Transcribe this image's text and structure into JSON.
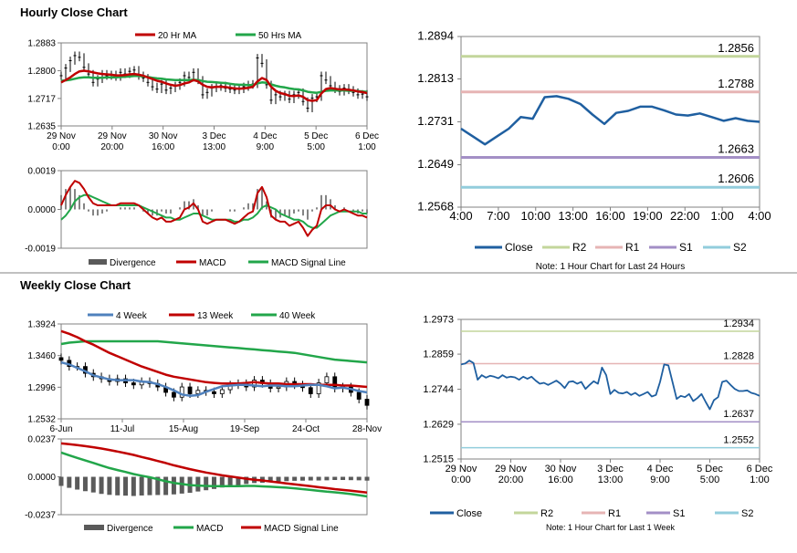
{
  "sections": {
    "hourly_title": "Hourly Close Chart",
    "weekly_title": "Weekly Close Chart"
  },
  "colors": {
    "close": "#1f5fa0",
    "ma20": "#c00000",
    "ma50": "#22a64a",
    "r2": "#c3d69b",
    "r1": "#e6b4b4",
    "s1": "#a38fc6",
    "s2": "#92cddc",
    "divergence": "#5a5a5a",
    "ma4": "#4f81bd",
    "ma13": "#c00000",
    "ma40": "#22a64a"
  },
  "chart_data": [
    {
      "id": "hourly-price",
      "type": "line",
      "legend": [
        "20 Hr MA",
        "50 Hrs MA"
      ],
      "x_ticks": [
        "29 Nov\n0:00",
        "29 Nov\n20:00",
        "30 Nov\n16:00",
        "3 Dec\n13:00",
        "4 Dec\n9:00",
        "5 Dec\n5:00",
        "6 Dec\n1:00"
      ],
      "y_ticks": [
        "1.2883",
        "1.2800",
        "1.2717",
        "1.2635"
      ],
      "ylim": [
        1.2635,
        1.2883
      ],
      "ohlc_hint": "candles",
      "close": [
        1.2785,
        1.2808,
        1.283,
        1.2845,
        1.284,
        1.281,
        1.279,
        1.2765,
        1.2775,
        1.279,
        1.2785,
        1.2788,
        1.2782,
        1.2795,
        1.279,
        1.2798,
        1.2802,
        1.2785,
        1.2778,
        1.2765,
        1.2752,
        1.2745,
        1.276,
        1.2742,
        1.2748,
        1.2755,
        1.2765,
        1.2785,
        1.278,
        1.2795,
        1.2772,
        1.2728,
        1.2735,
        1.2748,
        1.2752,
        1.2755,
        1.2748,
        1.2745,
        1.2742,
        1.2745,
        1.2752,
        1.2758,
        1.276,
        1.2838,
        1.2822,
        1.2758,
        1.2712,
        1.2728,
        1.2722,
        1.2728,
        1.2715,
        1.2728,
        1.2735,
        1.2708,
        1.2688,
        1.2718,
        1.2722,
        1.2785,
        1.2772,
        1.2755,
        1.2745,
        1.2738,
        1.2748,
        1.2742,
        1.2735,
        1.2728,
        1.273,
        1.2722
      ],
      "ma20": [
        1.2765,
        1.2772,
        1.278,
        1.279,
        1.2798,
        1.28,
        1.2798,
        1.2795,
        1.2792,
        1.279,
        1.2789,
        1.2788,
        1.2786,
        1.2786,
        1.2787,
        1.2789,
        1.279,
        1.2788,
        1.2785,
        1.278,
        1.2775,
        1.277,
        1.2767,
        1.2762,
        1.2758,
        1.2755,
        1.2757,
        1.2762,
        1.2765,
        1.2772,
        1.2768,
        1.2758,
        1.2752,
        1.275,
        1.2752,
        1.2752,
        1.2751,
        1.2749,
        1.2747,
        1.2746,
        1.2747,
        1.2749,
        1.2752,
        1.2768,
        1.2778,
        1.2772,
        1.2752,
        1.274,
        1.2733,
        1.273,
        1.2725,
        1.2724,
        1.2726,
        1.2722,
        1.2712,
        1.271,
        1.2712,
        1.2732,
        1.2745,
        1.2748,
        1.2746,
        1.2744,
        1.2744,
        1.2743,
        1.2741,
        1.2738,
        1.2736,
        1.2733
      ],
      "ma50": [
        1.277,
        1.2771,
        1.2773,
        1.2776,
        1.2779,
        1.278,
        1.278,
        1.2779,
        1.2779,
        1.2779,
        1.278,
        1.278,
        1.278,
        1.2781,
        1.2782,
        1.2783,
        1.2784,
        1.2784,
        1.2783,
        1.2781,
        1.2779,
        1.2777,
        1.2776,
        1.2774,
        1.2773,
        1.2772,
        1.2772,
        1.2772,
        1.2772,
        1.2773,
        1.2772,
        1.2769,
        1.2767,
        1.2766,
        1.2765,
        1.2764,
        1.2763,
        1.2761,
        1.2759,
        1.2758,
        1.2758,
        1.2757,
        1.2757,
        1.2762,
        1.2765,
        1.2764,
        1.2759,
        1.2755,
        1.2752,
        1.275,
        1.2747,
        1.2745,
        1.2744,
        1.2741,
        1.2737,
        1.2735,
        1.2734,
        1.2737,
        1.274,
        1.2741,
        1.2741,
        1.2741,
        1.2741,
        1.274,
        1.274,
        1.2739,
        1.2738,
        1.2737
      ]
    },
    {
      "id": "hourly-macd",
      "type": "line",
      "legend": [
        "Divergence",
        "MACD",
        "MACD Signal Line"
      ],
      "y_ticks": [
        "0.0019",
        "0.0000",
        "-0.0019"
      ],
      "ylim": [
        -0.0019,
        0.0019
      ],
      "macd": [
        0.0002,
        0.0007,
        0.0011,
        0.0014,
        0.0013,
        0.001,
        0.0006,
        0.0003,
        0.0002,
        0.0002,
        0.0002,
        0.0002,
        0.0002,
        0.0003,
        0.0003,
        0.0003,
        0.0003,
        0.0002,
        0.0,
        -0.0002,
        -0.0004,
        -0.0005,
        -0.0004,
        -0.0006,
        -0.0006,
        -0.0005,
        -0.0004,
        0.0,
        0.0001,
        0.0003,
        0.0,
        -0.0006,
        -0.0007,
        -0.0006,
        -0.0005,
        -0.0005,
        -0.0005,
        -0.0006,
        -0.0007,
        -0.0006,
        -0.0004,
        -0.0002,
        -0.0001,
        0.0008,
        0.0011,
        0.0006,
        -0.0003,
        -0.0005,
        -0.0006,
        -0.0006,
        -0.0008,
        -0.0007,
        -0.0006,
        -0.0009,
        -0.0013,
        -0.001,
        -0.0008,
        0.0,
        0.0002,
        0.0002,
        0.0,
        -0.0001,
        0.0,
        -0.0001,
        -0.0002,
        -0.0003,
        -0.0003,
        -0.0004
      ],
      "signal": [
        -0.0005,
        -0.0003,
        0.0,
        0.0004,
        0.0006,
        0.0007,
        0.0007,
        0.0006,
        0.0005,
        0.0004,
        0.0003,
        0.0002,
        0.0002,
        0.0002,
        0.0002,
        0.0002,
        0.0002,
        0.0002,
        0.0001,
        0.0,
        -0.0001,
        -0.0002,
        -0.0003,
        -0.0004,
        -0.0004,
        -0.0005,
        -0.0005,
        -0.0004,
        -0.0003,
        -0.0002,
        -0.0002,
        -0.0003,
        -0.0004,
        -0.0005,
        -0.0005,
        -0.0005,
        -0.0005,
        -0.0005,
        -0.0006,
        -0.0006,
        -0.0005,
        -0.0005,
        -0.0004,
        -0.0002,
        0.0001,
        0.0002,
        0.0001,
        0.0,
        -0.0002,
        -0.0003,
        -0.0004,
        -0.0005,
        -0.0005,
        -0.0006,
        -0.0008,
        -0.0009,
        -0.0009,
        -0.0007,
        -0.0005,
        -0.0003,
        -0.0002,
        -0.0001,
        -0.0001,
        -0.0001,
        -0.0001,
        -0.0001,
        -0.0002,
        -0.0002
      ]
    },
    {
      "id": "hourly-24h",
      "type": "line",
      "x_ticks": [
        "4:00",
        "7:00",
        "10:00",
        "13:00",
        "16:00",
        "19:00",
        "22:00",
        "1:00",
        "4:00"
      ],
      "y_ticks": [
        "1.2894",
        "1.2813",
        "1.2731",
        "1.2649",
        "1.2568"
      ],
      "ylim": [
        1.2568,
        1.2894
      ],
      "levels": {
        "R2": 1.2856,
        "R1": 1.2788,
        "S1": 1.2663,
        "S2": 1.2606
      },
      "level_labels": [
        "1.2856",
        "1.2788",
        "1.2663",
        "1.2606"
      ],
      "legend": [
        "Close",
        "R2",
        "R1",
        "S1",
        "S2"
      ],
      "note": "Note: 1 Hour Chart for Last 24 Hours",
      "close": [
        1.2718,
        1.2703,
        1.2688,
        1.2703,
        1.2718,
        1.274,
        1.2737,
        1.2778,
        1.278,
        1.2775,
        1.2765,
        1.2745,
        1.2727,
        1.2748,
        1.2752,
        1.276,
        1.276,
        1.2753,
        1.2745,
        1.2743,
        1.2747,
        1.274,
        1.2733,
        1.2738,
        1.2733,
        1.2731
      ]
    },
    {
      "id": "weekly-price",
      "type": "line",
      "legend": [
        "4 Week",
        "13 Week",
        "40 Week"
      ],
      "x_ticks": [
        "6-Jun",
        "11-Jul",
        "15-Aug",
        "19-Sep",
        "24-Oct",
        "28-Nov"
      ],
      "y_ticks": [
        "1.3924",
        "1.3460",
        "1.2996",
        "1.2532"
      ],
      "ylim": [
        1.2532,
        1.3924
      ],
      "close": [
        1.339,
        1.33,
        1.33,
        1.32,
        1.315,
        1.312,
        1.308,
        1.312,
        1.306,
        1.303,
        1.308,
        1.305,
        1.3,
        1.292,
        1.285,
        1.3,
        1.29,
        1.295,
        1.293,
        1.29,
        1.296,
        1.303,
        1.305,
        1.3,
        1.31,
        1.305,
        1.298,
        1.3,
        1.308,
        1.303,
        1.299,
        1.29,
        1.306,
        1.315,
        1.298,
        1.3,
        1.292,
        1.282,
        1.273
      ],
      "ma4": [
        1.336,
        1.333,
        1.328,
        1.323,
        1.317,
        1.314,
        1.311,
        1.31,
        1.31,
        1.31,
        1.308,
        1.307,
        1.304,
        1.3,
        1.295,
        1.289,
        1.287,
        1.288,
        1.293,
        1.297,
        1.301,
        1.302,
        1.303,
        1.303,
        1.302,
        1.301,
        1.302,
        1.302,
        1.301,
        1.301,
        1.302,
        1.303,
        1.303,
        1.301,
        1.298,
        1.299,
        1.297,
        1.294,
        1.292
      ],
      "ma13": [
        1.382,
        1.378,
        1.373,
        1.367,
        1.362,
        1.356,
        1.35,
        1.345,
        1.34,
        1.335,
        1.33,
        1.326,
        1.322,
        1.318,
        1.315,
        1.313,
        1.311,
        1.309,
        1.307,
        1.306,
        1.305,
        1.305,
        1.305,
        1.306,
        1.307,
        1.306,
        1.305,
        1.305,
        1.304,
        1.304,
        1.304,
        1.304,
        1.303,
        1.303,
        1.303,
        1.302,
        1.302,
        1.301,
        1.3
      ],
      "ma40": [
        1.363,
        1.365,
        1.366,
        1.367,
        1.367,
        1.367,
        1.367,
        1.367,
        1.367,
        1.367,
        1.367,
        1.367,
        1.367,
        1.366,
        1.365,
        1.364,
        1.363,
        1.362,
        1.361,
        1.36,
        1.359,
        1.358,
        1.357,
        1.356,
        1.355,
        1.354,
        1.353,
        1.352,
        1.351,
        1.35,
        1.348,
        1.346,
        1.344,
        1.342,
        1.34,
        1.339,
        1.338,
        1.337,
        1.336
      ]
    },
    {
      "id": "weekly-macd",
      "type": "line",
      "legend": [
        "Divergence",
        "MACD",
        "MACD Signal Line"
      ],
      "y_ticks": [
        "0.0237",
        "0.0000",
        "-0.0237"
      ],
      "ylim": [
        -0.0237,
        0.0237
      ],
      "macd": [
        0.0152,
        0.0135,
        0.0118,
        0.0102,
        0.0087,
        0.007,
        0.0055,
        0.0042,
        0.003,
        0.0017,
        0.0007,
        -0.0003,
        -0.0015,
        -0.0028,
        -0.0038,
        -0.0045,
        -0.0052,
        -0.0055,
        -0.0057,
        -0.0058,
        -0.0058,
        -0.0058,
        -0.0058,
        -0.0057,
        -0.0057,
        -0.006,
        -0.0062,
        -0.0065,
        -0.0068,
        -0.0072,
        -0.0077,
        -0.0082,
        -0.0088,
        -0.0093,
        -0.0097,
        -0.0102,
        -0.0108,
        -0.0115,
        -0.0123
      ],
      "signal": [
        0.0209,
        0.0204,
        0.0198,
        0.0192,
        0.0185,
        0.0177,
        0.0168,
        0.0158,
        0.0148,
        0.0137,
        0.0124,
        0.0112,
        0.0099,
        0.0086,
        0.0072,
        0.006,
        0.0048,
        0.0037,
        0.0027,
        0.0018,
        0.0009,
        0.0002,
        -0.0005,
        -0.0012,
        -0.0018,
        -0.0023,
        -0.0029,
        -0.0035,
        -0.0041,
        -0.0047,
        -0.0053,
        -0.0059,
        -0.0065,
        -0.0071,
        -0.0077,
        -0.0082,
        -0.0087,
        -0.0093,
        -0.0099
      ]
    },
    {
      "id": "weekly-1w",
      "type": "line",
      "x_ticks": [
        "29 Nov\n0:00",
        "29 Nov\n20:00",
        "30 Nov\n16:00",
        "3 Dec\n13:00",
        "4 Dec\n9:00",
        "5 Dec\n5:00",
        "6 Dec\n1:00"
      ],
      "y_ticks": [
        "1.2973",
        "1.2859",
        "1.2744",
        "1.2629",
        "1.2515"
      ],
      "ylim": [
        1.2515,
        1.2973
      ],
      "levels": {
        "R2": 1.2934,
        "R1": 1.2828,
        "S1": 1.2637,
        "S2": 1.2552
      },
      "level_labels": [
        "1.2934",
        "1.2828",
        "1.2637",
        "1.2552"
      ],
      "legend": [
        "Close",
        "R2",
        "R1",
        "S1",
        "S2"
      ],
      "note": "Note: 1 Hour Chart for Last 1 Week",
      "close": [
        1.2825,
        1.2828,
        1.2838,
        1.283,
        1.2775,
        1.279,
        1.2782,
        1.2788,
        1.2785,
        1.278,
        1.279,
        1.2782,
        1.2785,
        1.2783,
        1.2775,
        1.2785,
        1.2778,
        1.2785,
        1.2772,
        1.2762,
        1.2765,
        1.2758,
        1.2765,
        1.2772,
        1.2762,
        1.2748,
        1.2768,
        1.277,
        1.2762,
        1.2768,
        1.2745,
        1.2758,
        1.277,
        1.2762,
        1.2815,
        1.279,
        1.2728,
        1.2742,
        1.2732,
        1.273,
        1.2735,
        1.2725,
        1.2732,
        1.2722,
        1.2728,
        1.2735,
        1.272,
        1.2725,
        1.2768,
        1.2825,
        1.2822,
        1.2768,
        1.2712,
        1.2722,
        1.2718,
        1.2728,
        1.2705,
        1.2715,
        1.2728,
        1.2702,
        1.2678,
        1.2708,
        1.2718,
        1.2768,
        1.2772,
        1.2758,
        1.2745,
        1.2738,
        1.2738,
        1.274,
        1.2732,
        1.2728,
        1.2722
      ]
    }
  ]
}
